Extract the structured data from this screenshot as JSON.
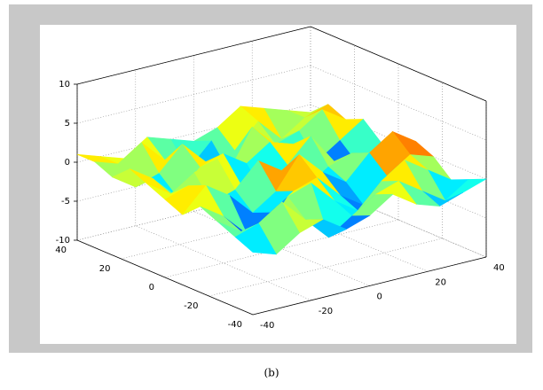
{
  "chart_data": {
    "type": "surface",
    "caption": "(b)",
    "x": [
      -40,
      -32,
      -24,
      -16,
      -8,
      0,
      8,
      16,
      24,
      32,
      40
    ],
    "y": [
      -40,
      -32,
      -24,
      -16,
      -8,
      0,
      8,
      16,
      24,
      32,
      40
    ],
    "z": [
      [
        -2,
        -3,
        -1,
        0,
        -2,
        -1,
        1,
        -1,
        -2,
        -1,
        0
      ],
      [
        -1,
        0,
        2,
        -1,
        -4,
        -2,
        0,
        1,
        -1,
        -3,
        -1
      ],
      [
        0,
        -2,
        -3,
        1,
        2,
        -1,
        -3,
        0,
        2,
        0,
        -2
      ],
      [
        1,
        -1,
        -4,
        -2,
        0,
        1,
        -2,
        -4,
        -1,
        1,
        0
      ],
      [
        -1,
        2,
        0,
        -3,
        -1,
        3,
        0,
        -2,
        1,
        3,
        1
      ],
      [
        0,
        1,
        -2,
        -1,
        2,
        0,
        -3,
        -1,
        0,
        -1,
        0
      ],
      [
        1,
        -1,
        1,
        2,
        -2,
        -4,
        -1,
        2,
        -2,
        -3,
        -1
      ],
      [
        2,
        0,
        -3,
        0,
        1,
        -1,
        1,
        0,
        -3,
        -1,
        1
      ],
      [
        0,
        -2,
        -1,
        2,
        -1,
        -3,
        2,
        -1,
        0,
        2,
        0
      ],
      [
        1,
        0,
        2,
        -1,
        -3,
        0,
        -2,
        1,
        -2,
        0,
        1
      ],
      [
        1,
        0,
        -1,
        1,
        0,
        -1,
        0,
        2,
        1,
        0,
        -1
      ]
    ],
    "colormap": "jet",
    "xlim": [
      -40,
      40
    ],
    "ylim": [
      -40,
      40
    ],
    "zlim": [
      -10,
      10
    ],
    "xticks": [
      -40,
      -20,
      0,
      20,
      40
    ],
    "yticks": [
      -40,
      -20,
      0,
      20,
      40
    ],
    "zticks": [
      -10,
      -5,
      0,
      5,
      10
    ],
    "grid": true
  }
}
